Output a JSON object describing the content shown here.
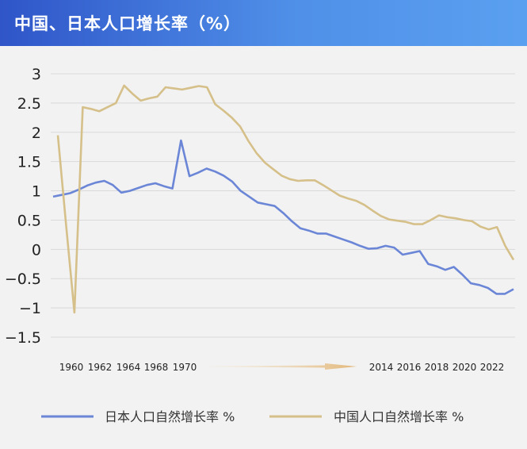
{
  "header": {
    "title": "中国、日本人口增长率（%）"
  },
  "chart_data": {
    "type": "line",
    "title": "中国、日本人口增长率（%）",
    "xlabel": "",
    "ylabel": "",
    "ylim": [
      -1.5,
      3
    ],
    "yticks": [
      "3",
      "2.5",
      "2",
      "1.5",
      "1",
      "0.5",
      "0",
      "−0.5",
      "−1",
      "−1.5"
    ],
    "ytick_values": [
      3,
      2.5,
      2,
      1.5,
      1,
      0.5,
      0,
      -0.5,
      -1,
      -1.5
    ],
    "x_tick_labels": [
      "1960",
      "1962",
      "1964",
      "1968",
      "1970",
      "2014",
      "2016",
      "2018",
      "2020",
      "2022"
    ],
    "grid": true,
    "legend": "bottom",
    "series": [
      {
        "name": "日本人口自然增长率 %",
        "color": "#6b86d6",
        "values": [
          0.9,
          0.93,
          0.96,
          1.02,
          1.09,
          1.14,
          1.17,
          1.1,
          0.97,
          1.0,
          1.05,
          1.1,
          1.13,
          1.08,
          1.04,
          1.86,
          1.25,
          1.31,
          1.38,
          1.33,
          1.26,
          1.16,
          1.0,
          0.9,
          0.8,
          0.77,
          0.74,
          0.62,
          0.48,
          0.36,
          0.32,
          0.27,
          0.27,
          0.22,
          0.17,
          0.12,
          0.06,
          0.01,
          0.02,
          0.06,
          0.03,
          -0.09,
          -0.06,
          -0.03,
          -0.25,
          -0.29,
          -0.35,
          -0.3,
          -0.43,
          -0.58,
          -0.61,
          -0.66,
          -0.76,
          -0.76,
          -0.68
        ]
      },
      {
        "name": "中国人口自然增长率 %",
        "color": "#d6c08a",
        "values": [
          1.95,
          0.4,
          -1.08,
          2.43,
          2.4,
          2.36,
          2.43,
          2.5,
          2.8,
          2.66,
          2.54,
          2.58,
          2.61,
          2.77,
          2.75,
          2.73,
          2.76,
          2.79,
          2.77,
          2.48,
          2.37,
          2.25,
          2.1,
          1.85,
          1.64,
          1.48,
          1.37,
          1.26,
          1.2,
          1.17,
          1.18,
          1.18,
          1.1,
          1.01,
          0.92,
          0.87,
          0.83,
          0.76,
          0.66,
          0.57,
          0.51,
          0.49,
          0.47,
          0.43,
          0.43,
          0.5,
          0.58,
          0.55,
          0.53,
          0.5,
          0.48,
          0.39,
          0.34,
          0.38,
          0.06,
          -0.18
        ]
      }
    ]
  }
}
